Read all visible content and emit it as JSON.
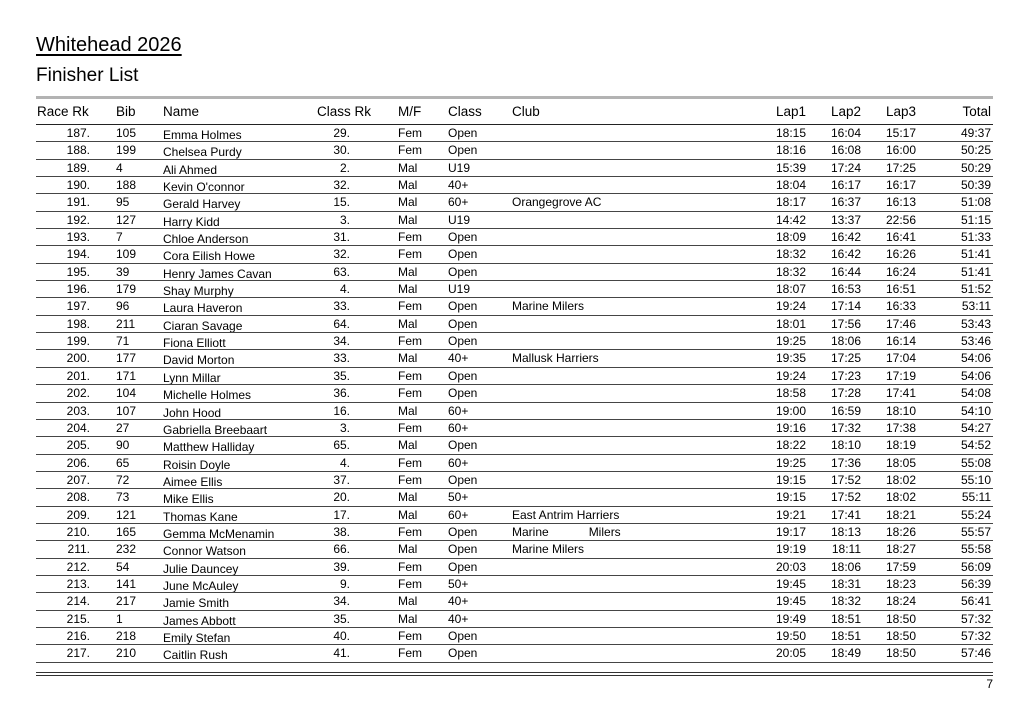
{
  "page": {
    "title": "Whitehead 2026",
    "subtitle": "Finisher List",
    "page_number": "7"
  },
  "colors": {
    "text": "#000000",
    "top_rule_gray": "#b3b3b3",
    "row_line": "#454545"
  },
  "table": {
    "columns": [
      "race_rk",
      "bib",
      "name",
      "class_rk",
      "mf",
      "class",
      "club",
      "lap1",
      "lap2",
      "lap3",
      "total"
    ],
    "headers": {
      "race_rk": "Race Rk",
      "bib": "Bib",
      "name": "Name",
      "class_rk": "Class Rk",
      "mf": "M/F",
      "class": "Class",
      "club": "Club",
      "lap1": "Lap1",
      "lap2": "Lap2",
      "lap3": "Lap3",
      "total": "Total"
    },
    "rows": [
      {
        "race_rk": "187.",
        "bib": "105",
        "name": "Emma Holmes",
        "class_rk": "29.",
        "mf": "Fem",
        "class": "Open",
        "club": "",
        "lap1": "18:15",
        "lap2": "16:04",
        "lap3": "15:17",
        "total": "49:37"
      },
      {
        "race_rk": "188.",
        "bib": "199",
        "name": "Chelsea Purdy",
        "class_rk": "30.",
        "mf": "Fem",
        "class": "Open",
        "club": "",
        "lap1": "18:16",
        "lap2": "16:08",
        "lap3": "16:00",
        "total": "50:25"
      },
      {
        "race_rk": "189.",
        "bib": "4",
        "name": "Ali Ahmed",
        "class_rk": "2.",
        "mf": "Mal",
        "class": "U19",
        "club": "",
        "lap1": "15:39",
        "lap2": "17:24",
        "lap3": "17:25",
        "total": "50:29"
      },
      {
        "race_rk": "190.",
        "bib": "188",
        "name": "Kevin O'connor",
        "class_rk": "32.",
        "mf": "Mal",
        "class": "40+",
        "club": "",
        "lap1": "18:04",
        "lap2": "16:17",
        "lap3": "16:17",
        "total": "50:39"
      },
      {
        "race_rk": "191.",
        "bib": "95",
        "name": "Gerald Harvey",
        "class_rk": "15.",
        "mf": "Mal",
        "class": "60+",
        "club": "Orangegrove AC",
        "lap1": "18:17",
        "lap2": "16:37",
        "lap3": "16:13",
        "total": "51:08"
      },
      {
        "race_rk": "192.",
        "bib": "127",
        "name": "Harry Kidd",
        "class_rk": "3.",
        "mf": "Mal",
        "class": "U19",
        "club": "",
        "lap1": "14:42",
        "lap2": "13:37",
        "lap3": "22:56",
        "total": "51:15"
      },
      {
        "race_rk": "193.",
        "bib": "7",
        "name": "Chloe Anderson",
        "class_rk": "31.",
        "mf": "Fem",
        "class": "Open",
        "club": "",
        "lap1": "18:09",
        "lap2": "16:42",
        "lap3": "16:41",
        "total": "51:33"
      },
      {
        "race_rk": "194.",
        "bib": "109",
        "name": "Cora Eilish Howe",
        "class_rk": "32.",
        "mf": "Fem",
        "class": "Open",
        "club": "",
        "lap1": "18:32",
        "lap2": "16:42",
        "lap3": "16:26",
        "total": "51:41"
      },
      {
        "race_rk": "195.",
        "bib": "39",
        "name": "Henry James Cavan",
        "class_rk": "63.",
        "mf": "Mal",
        "class": "Open",
        "club": "",
        "lap1": "18:32",
        "lap2": "16:44",
        "lap3": "16:24",
        "total": "51:41"
      },
      {
        "race_rk": "196.",
        "bib": "179",
        "name": "Shay Murphy",
        "class_rk": "4.",
        "mf": "Mal",
        "class": "U19",
        "club": "",
        "lap1": "18:07",
        "lap2": "16:53",
        "lap3": "16:51",
        "total": "51:52"
      },
      {
        "race_rk": "197.",
        "bib": "96",
        "name": "Laura Haveron",
        "class_rk": "33.",
        "mf": "Fem",
        "class": "Open",
        "club": "Marine Milers",
        "lap1": "19:24",
        "lap2": "17:14",
        "lap3": "16:33",
        "total": "53:11"
      },
      {
        "race_rk": "198.",
        "bib": "211",
        "name": "Ciaran Savage",
        "class_rk": "64.",
        "mf": "Mal",
        "class": "Open",
        "club": "",
        "lap1": "18:01",
        "lap2": "17:56",
        "lap3": "17:46",
        "total": "53:43"
      },
      {
        "race_rk": "199.",
        "bib": "71",
        "name": "Fiona Elliott",
        "class_rk": "34.",
        "mf": "Fem",
        "class": "Open",
        "club": "",
        "lap1": "19:25",
        "lap2": "18:06",
        "lap3": "16:14",
        "total": "53:46"
      },
      {
        "race_rk": "200.",
        "bib": "177",
        "name": "David Morton",
        "class_rk": "33.",
        "mf": "Mal",
        "class": "40+",
        "club": "Mallusk Harriers",
        "lap1": "19:35",
        "lap2": "17:25",
        "lap3": "17:04",
        "total": "54:06"
      },
      {
        "race_rk": "201.",
        "bib": "171",
        "name": "Lynn Millar",
        "class_rk": "35.",
        "mf": "Fem",
        "class": "Open",
        "club": "",
        "lap1": "19:24",
        "lap2": "17:23",
        "lap3": "17:19",
        "total": "54:06"
      },
      {
        "race_rk": "202.",
        "bib": "104",
        "name": "Michelle Holmes",
        "class_rk": "36.",
        "mf": "Fem",
        "class": "Open",
        "club": "",
        "lap1": "18:58",
        "lap2": "17:28",
        "lap3": "17:41",
        "total": "54:08"
      },
      {
        "race_rk": "203.",
        "bib": "107",
        "name": "John Hood",
        "class_rk": "16.",
        "mf": "Mal",
        "class": "60+",
        "club": "",
        "lap1": "19:00",
        "lap2": "16:59",
        "lap3": "18:10",
        "total": "54:10"
      },
      {
        "race_rk": "204.",
        "bib": "27",
        "name": "Gabriella Breebaart",
        "class_rk": "3.",
        "mf": "Fem",
        "class": "60+",
        "club": "",
        "lap1": "19:16",
        "lap2": "17:32",
        "lap3": "17:38",
        "total": "54:27"
      },
      {
        "race_rk": "205.",
        "bib": "90",
        "name": "Matthew Halliday",
        "class_rk": "65.",
        "mf": "Mal",
        "class": "Open",
        "club": "",
        "lap1": "18:22",
        "lap2": "18:10",
        "lap3": "18:19",
        "total": "54:52"
      },
      {
        "race_rk": "206.",
        "bib": "65",
        "name": "Roisin Doyle",
        "class_rk": "4.",
        "mf": "Fem",
        "class": "60+",
        "club": "",
        "lap1": "19:25",
        "lap2": "17:36",
        "lap3": "18:05",
        "total": "55:08"
      },
      {
        "race_rk": "207.",
        "bib": "72",
        "name": "Aimee Ellis",
        "class_rk": "37.",
        "mf": "Fem",
        "class": "Open",
        "club": "",
        "lap1": "19:15",
        "lap2": "17:52",
        "lap3": "18:02",
        "total": "55:10"
      },
      {
        "race_rk": "208.",
        "bib": "73",
        "name": "Mike Ellis",
        "class_rk": "20.",
        "mf": "Mal",
        "class": "50+",
        "club": "",
        "lap1": "19:15",
        "lap2": "17:52",
        "lap3": "18:02",
        "total": "55:11"
      },
      {
        "race_rk": "209.",
        "bib": "121",
        "name": "Thomas Kane",
        "class_rk": "17.",
        "mf": "Mal",
        "class": "60+",
        "club": "East Antrim Harriers",
        "lap1": "19:21",
        "lap2": "17:41",
        "lap3": "18:21",
        "total": "55:24"
      },
      {
        "race_rk": "210.",
        "bib": "165",
        "name": "Gemma McMenamin",
        "class_rk": "38.",
        "mf": "Fem",
        "class": "Open",
        "club": "Marine            Milers",
        "lap1": "19:17",
        "lap2": "18:13",
        "lap3": "18:26",
        "total": "55:57"
      },
      {
        "race_rk": "211.",
        "bib": "232",
        "name": "Connor Watson",
        "class_rk": "66.",
        "mf": "Mal",
        "class": "Open",
        "club": "Marine Milers",
        "lap1": "19:19",
        "lap2": "18:11",
        "lap3": "18:27",
        "total": "55:58"
      },
      {
        "race_rk": "212.",
        "bib": "54",
        "name": "Julie Dauncey",
        "class_rk": "39.",
        "mf": "Fem",
        "class": "Open",
        "club": "",
        "lap1": "20:03",
        "lap2": "18:06",
        "lap3": "17:59",
        "total": "56:09"
      },
      {
        "race_rk": "213.",
        "bib": "141",
        "name": "June McAuley",
        "class_rk": "9.",
        "mf": "Fem",
        "class": "50+",
        "club": "",
        "lap1": "19:45",
        "lap2": "18:31",
        "lap3": "18:23",
        "total": "56:39"
      },
      {
        "race_rk": "214.",
        "bib": "217",
        "name": "Jamie Smith",
        "class_rk": "34.",
        "mf": "Mal",
        "class": "40+",
        "club": "",
        "lap1": "19:45",
        "lap2": "18:32",
        "lap3": "18:24",
        "total": "56:41"
      },
      {
        "race_rk": "215.",
        "bib": "1",
        "name": "James Abbott",
        "class_rk": "35.",
        "mf": "Mal",
        "class": "40+",
        "club": "",
        "lap1": "19:49",
        "lap2": "18:51",
        "lap3": "18:50",
        "total": "57:32"
      },
      {
        "race_rk": "216.",
        "bib": "218",
        "name": "Emily Stefan",
        "class_rk": "40.",
        "mf": "Fem",
        "class": "Open",
        "club": "",
        "lap1": "19:50",
        "lap2": "18:51",
        "lap3": "18:50",
        "total": "57:32"
      },
      {
        "race_rk": "217.",
        "bib": "210",
        "name": "Caitlin Rush",
        "class_rk": "41.",
        "mf": "Fem",
        "class": "Open",
        "club": "",
        "lap1": "20:05",
        "lap2": "18:49",
        "lap3": "18:50",
        "total": "57:46"
      }
    ]
  }
}
